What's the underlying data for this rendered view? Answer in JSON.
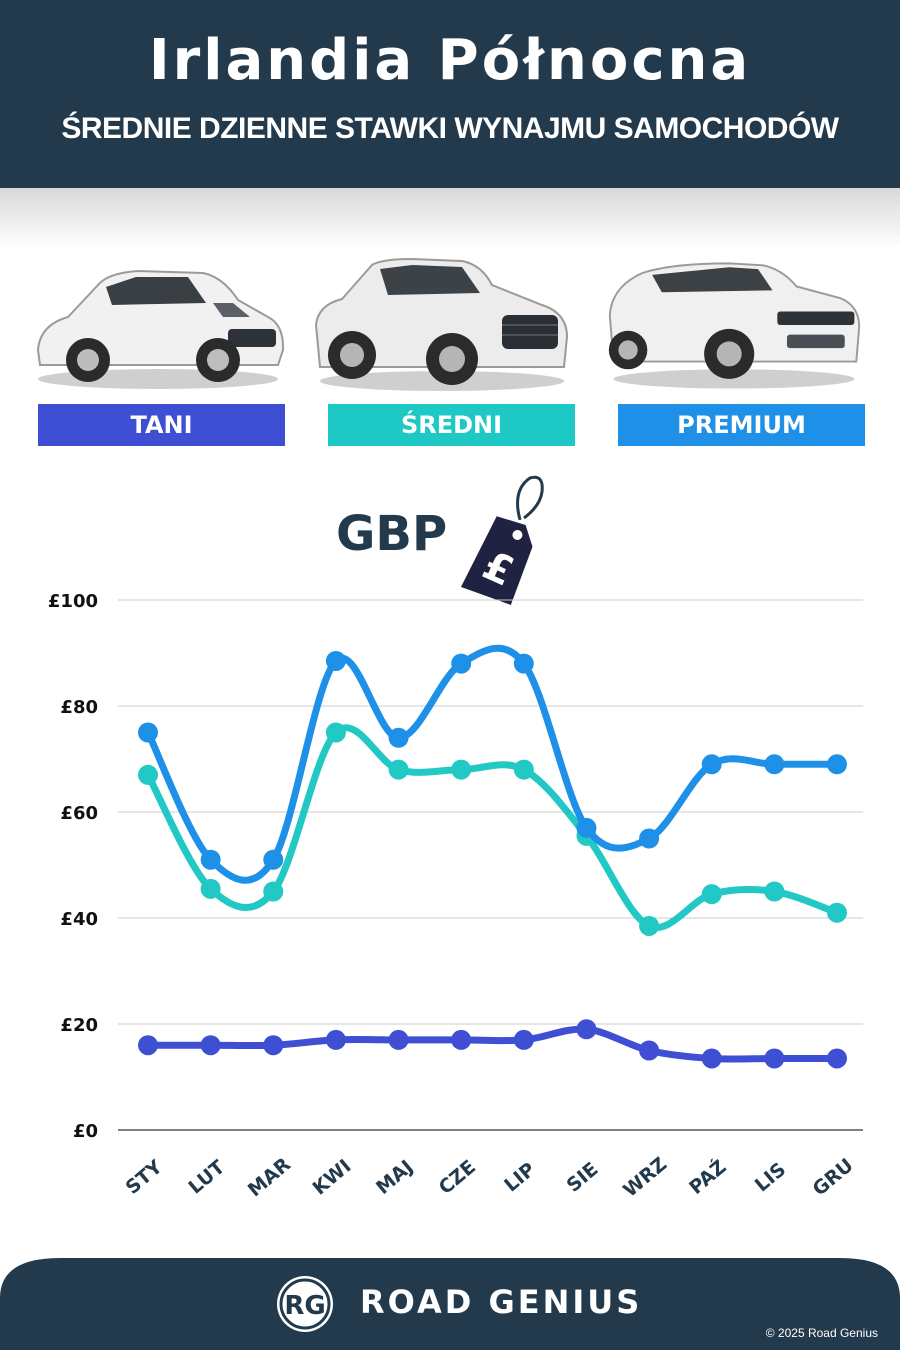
{
  "header": {
    "title": "Irlandia Północna",
    "subtitle": "ŚREDNIE DZIENNE STAWKI WYNAJMU SAMOCHODÓW"
  },
  "categories": [
    {
      "label": "TANI",
      "color": "#3f4fd4"
    },
    {
      "label": "ŚREDNI",
      "color": "#1ec8c4"
    },
    {
      "label": "PREMIUM",
      "color": "#1e90e8"
    }
  ],
  "currency": {
    "label": "GBP",
    "symbol": "£"
  },
  "chart_data": {
    "type": "line",
    "categories": [
      "STY",
      "LUT",
      "MAR",
      "KWI",
      "MAJ",
      "CZE",
      "LIP",
      "SIE",
      "WRZ",
      "PAŹ",
      "LIS",
      "GRU"
    ],
    "series": [
      {
        "name": "TANI",
        "color": "#3f4fd4",
        "values": [
          16,
          16,
          16,
          17,
          17,
          17,
          17,
          19,
          15,
          13.5,
          13.5,
          13.5
        ]
      },
      {
        "name": "ŚREDNI",
        "color": "#22c9c4",
        "values": [
          67,
          45.5,
          45,
          75,
          68,
          68,
          68,
          55.5,
          38.5,
          44.5,
          45,
          41
        ]
      },
      {
        "name": "PREMIUM",
        "color": "#1e90e8",
        "values": [
          75,
          51,
          51,
          88.5,
          74,
          88,
          88,
          57,
          55,
          69,
          69,
          69
        ]
      }
    ],
    "yticks": [
      "£0",
      "£20",
      "£40",
      "£60",
      "£80",
      "£100"
    ],
    "ylim": [
      0,
      100
    ],
    "grid": true
  },
  "footer": {
    "logo_text": "RG",
    "brand": "ROAD GENIUS",
    "copyright": "© 2025 Road Genius",
    "background": "#233a4c"
  }
}
